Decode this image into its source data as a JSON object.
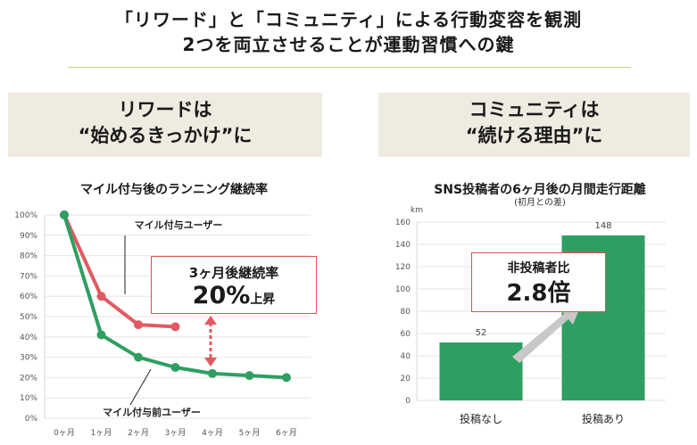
{
  "header": {
    "line1": "「リワード」と「コミュニティ」による行動変容を観測",
    "line2": "2つを両立させることが運動習慣への鍵"
  },
  "left_panel": {
    "line1": "リワードは",
    "line2": "“始めるきっかけ”に"
  },
  "right_panel": {
    "line1": "コミュニティは",
    "line2": "“続ける理由”に"
  },
  "colors": {
    "red": "#e05a62",
    "green": "#2f9e62",
    "panel_bg": "#efebe1",
    "arrow": "#c8c8c8"
  },
  "chart_data": [
    {
      "type": "line",
      "title": "マイル付与後のランニング継続率",
      "categories": [
        "0ヶ月",
        "1ヶ月",
        "2ヶ月",
        "3ヶ月",
        "4ヶ月",
        "5ヶ月",
        "6ヶ月"
      ],
      "y_ticks": [
        "0%",
        "10%",
        "20%",
        "30%",
        "40%",
        "50%",
        "60%",
        "70%",
        "80%",
        "90%",
        "100%"
      ],
      "ylim": [
        0,
        100
      ],
      "grid": true,
      "series": [
        {
          "name": "マイル付与ユーザー",
          "values": [
            100,
            60,
            46,
            45,
            null,
            null,
            null
          ]
        },
        {
          "name": "マイル付与前ユーザー",
          "values": [
            100,
            41,
            30,
            25,
            22,
            21,
            20
          ]
        }
      ],
      "callout": {
        "line1": "3ヶ月後継続率",
        "value": "20%",
        "suffix": "上昇"
      }
    },
    {
      "type": "bar",
      "title": "SNS投稿者の6ヶ月後の月間走行距離",
      "subtitle": "(初月との差)",
      "unit_label": "km",
      "categories": [
        "投稿なし",
        "投稿あり"
      ],
      "values": [
        52,
        148
      ],
      "y_ticks": [
        "0",
        "20",
        "40",
        "60",
        "80",
        "100",
        "120",
        "140",
        "160"
      ],
      "ylim": [
        0,
        160
      ],
      "callout": {
        "line1": "非投稿者比",
        "value": "2.8倍"
      }
    }
  ]
}
